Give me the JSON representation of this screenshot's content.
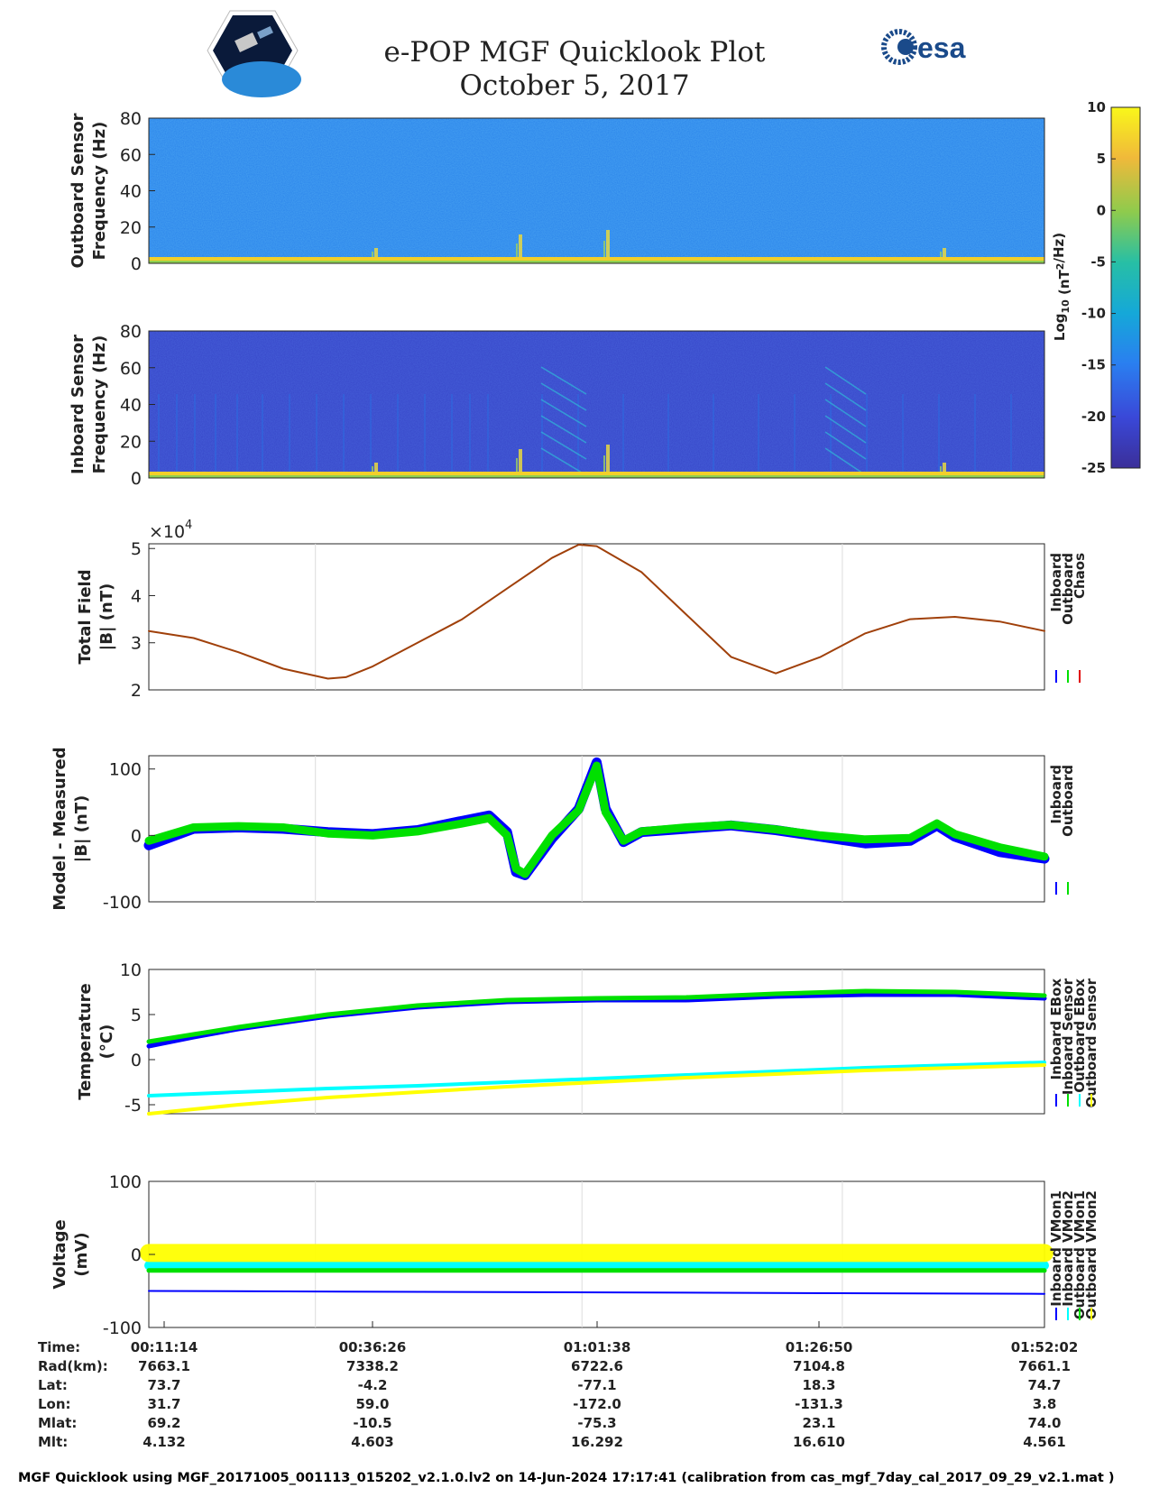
{
  "header": {
    "title": "e-POP MGF Quicklook Plot",
    "date": "October 5, 2017",
    "left_logo": "cassiope-mission-logo",
    "right_logo": "esa-logo",
    "right_logo_text": "esa"
  },
  "colorbar": {
    "label_base": "Log",
    "label_sub": "10",
    "label_unit": " (nT",
    "label_sup": "2",
    "label_tail": "/Hz)",
    "ticks": [
      10,
      5,
      0,
      -5,
      -10,
      -15,
      -20,
      -25
    ],
    "range": [
      -25,
      10
    ]
  },
  "chart_data": [
    {
      "id": "outboard-spectrogram",
      "type": "heatmap",
      "ylabel": [
        "Outboard Sensor",
        "Frequency (Hz)"
      ],
      "ylim": [
        0,
        80
      ],
      "yticks": [
        0,
        20,
        40,
        60,
        80
      ],
      "background_level": -14,
      "low_frequency_band_level": 6
    },
    {
      "id": "inboard-spectrogram",
      "type": "heatmap",
      "ylabel": [
        "Inboard Sensor",
        "Frequency (Hz)"
      ],
      "ylim": [
        0,
        80
      ],
      "yticks": [
        0,
        20,
        40,
        60,
        80
      ],
      "background_level": -21,
      "low_frequency_band_level": 6
    },
    {
      "id": "total-field",
      "type": "line",
      "ylabel": [
        "Total Field",
        "|B| (nT)"
      ],
      "multiplier": "×10",
      "multiplier_exp": "4",
      "ylim": [
        2,
        5.1
      ],
      "yticks": [
        2,
        3,
        4,
        5
      ],
      "legend": [
        "Inboard",
        "Outboard",
        "Chaos"
      ],
      "legend_colors": [
        "#0000ff",
        "#00e000",
        "#e00000"
      ],
      "x": [
        0,
        0.05,
        0.1,
        0.15,
        0.2,
        0.22,
        0.25,
        0.3,
        0.35,
        0.4,
        0.45,
        0.48,
        0.5,
        0.55,
        0.6,
        0.65,
        0.7,
        0.75,
        0.8,
        0.85,
        0.9,
        0.95,
        1.0
      ],
      "series": [
        {
          "values": [
            3.25,
            3.1,
            2.8,
            2.45,
            2.24,
            2.27,
            2.5,
            3.0,
            3.5,
            4.15,
            4.8,
            5.08,
            5.05,
            4.5,
            3.6,
            2.7,
            2.35,
            2.7,
            3.2,
            3.5,
            3.55,
            3.45,
            3.25
          ]
        }
      ]
    },
    {
      "id": "model-minus-measured",
      "type": "line",
      "ylabel": [
        "Model - Measured",
        "|B| (nT)"
      ],
      "ylim": [
        -100,
        120
      ],
      "yticks": [
        -100,
        0,
        100
      ],
      "legend": [
        "Inboard",
        "Outboard"
      ],
      "legend_colors": [
        "#0000ff",
        "#00e000"
      ],
      "x": [
        0,
        0.05,
        0.1,
        0.15,
        0.2,
        0.25,
        0.3,
        0.35,
        0.38,
        0.4,
        0.41,
        0.42,
        0.45,
        0.48,
        0.5,
        0.51,
        0.53,
        0.55,
        0.6,
        0.65,
        0.7,
        0.75,
        0.8,
        0.85,
        0.88,
        0.9,
        0.95,
        1.0
      ],
      "series": [
        {
          "values": [
            -15,
            10,
            12,
            10,
            5,
            2,
            8,
            22,
            30,
            5,
            -55,
            -60,
            -5,
            40,
            110,
            40,
            -10,
            5,
            10,
            15,
            8,
            -2,
            -12,
            -8,
            15,
            -2,
            -25,
            -35
          ]
        },
        {
          "values": [
            -8,
            12,
            14,
            12,
            3,
            0,
            6,
            18,
            26,
            0,
            -50,
            -58,
            0,
            38,
            105,
            35,
            -8,
            6,
            12,
            16,
            9,
            0,
            -6,
            -4,
            18,
            2,
            -18,
            -32
          ]
        }
      ]
    },
    {
      "id": "temperature",
      "type": "line",
      "ylabel": [
        "Temperature",
        "(°C)"
      ],
      "ylim": [
        -6,
        10
      ],
      "yticks": [
        -5,
        0,
        5,
        10
      ],
      "legend": [
        "Inboard EBox",
        "Inboard Sensor",
        "Outboard EBox",
        "Outboard Sensor"
      ],
      "legend_colors": [
        "#0000ff",
        "#00e000",
        "#00ffff",
        "#ffff00"
      ],
      "x": [
        0,
        0.05,
        0.1,
        0.15,
        0.2,
        0.3,
        0.4,
        0.5,
        0.6,
        0.7,
        0.8,
        0.9,
        1.0
      ],
      "series": [
        {
          "values": [
            1.5,
            2.5,
            3.4,
            4.1,
            4.8,
            5.8,
            6.4,
            6.6,
            6.6,
            7.0,
            7.2,
            7.2,
            6.8
          ]
        },
        {
          "values": [
            2.0,
            2.8,
            3.6,
            4.3,
            5.0,
            6.0,
            6.6,
            6.8,
            6.9,
            7.3,
            7.6,
            7.5,
            7.1
          ]
        },
        {
          "values": [
            -4.0,
            -3.8,
            -3.6,
            -3.4,
            -3.2,
            -2.9,
            -2.5,
            -2.1,
            -1.7,
            -1.3,
            -0.9,
            -0.6,
            -0.3
          ]
        },
        {
          "values": [
            -6.0,
            -5.5,
            -5.0,
            -4.6,
            -4.2,
            -3.6,
            -3.0,
            -2.5,
            -2.0,
            -1.6,
            -1.2,
            -0.9,
            -0.6
          ]
        }
      ]
    },
    {
      "id": "voltage",
      "type": "line",
      "ylabel": [
        "Voltage",
        "(mV)"
      ],
      "ylim": [
        -100,
        100
      ],
      "yticks": [
        -100,
        0,
        100
      ],
      "legend": [
        "Inboard VMon1",
        "Inboard VMon2",
        "Outboard VMon1",
        "Outboard VMon2"
      ],
      "legend_colors": [
        "#0000ff",
        "#00ffff",
        "#00e000",
        "#ffff00"
      ],
      "x": [
        0,
        1
      ],
      "series": [
        {
          "values": [
            -50,
            -54
          ]
        },
        {
          "values": [
            -15,
            -15
          ]
        },
        {
          "values": [
            -22,
            -22
          ]
        },
        {
          "values": [
            2,
            2
          ]
        }
      ]
    }
  ],
  "time_axis": {
    "rows": [
      {
        "label": "Time:",
        "values": [
          "00:11:14",
          "00:36:26",
          "01:01:38",
          "01:26:50",
          "01:52:02"
        ]
      },
      {
        "label": "Rad(km):",
        "values": [
          "7663.1",
          "7338.2",
          "6722.6",
          "7104.8",
          "7661.1"
        ]
      },
      {
        "label": "Lat:",
        "values": [
          "73.7",
          "-4.2",
          "-77.1",
          "18.3",
          "74.7"
        ]
      },
      {
        "label": "Lon:",
        "values": [
          "31.7",
          "59.0",
          "-172.0",
          "-131.3",
          "3.8"
        ]
      },
      {
        "label": "Mlat:",
        "values": [
          "69.2",
          "-10.5",
          "-75.3",
          "23.1",
          "74.0"
        ]
      },
      {
        "label": "Mlt:",
        "values": [
          "4.132",
          "4.603",
          "16.292",
          "16.610",
          "4.561"
        ]
      }
    ]
  },
  "footer": "MGF Quicklook using MGF_20171005_001113_015202_v2.1.0.lv2 on 14-Jun-2024 17:17:41 (calibration from cas_mgf_7day_cal_2017_09_29_v2.1.mat )",
  "colors": {
    "inboard": "#0000ff",
    "outboard": "#00e000",
    "chaos": "#e00000",
    "cyan": "#00ffff",
    "yellow": "#ffff00",
    "field_line": "#a0400a"
  }
}
